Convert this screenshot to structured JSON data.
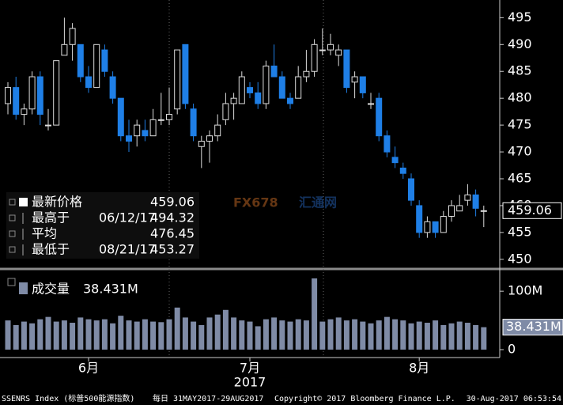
{
  "chart_data": [
    {
      "type": "candlestick",
      "categories": [
        null,
        null,
        null,
        null,
        null,
        null,
        null,
        null,
        null,
        null,
        null,
        null,
        null,
        null,
        null,
        null,
        null,
        null,
        null,
        null,
        null,
        null,
        null,
        null,
        null,
        null,
        null,
        null,
        null,
        null,
        null,
        null,
        null,
        null,
        null,
        null,
        null,
        null,
        null,
        null,
        null,
        null,
        null,
        null,
        null,
        null,
        null,
        null,
        null,
        null,
        null,
        null,
        null,
        null,
        null,
        null,
        null,
        null,
        null,
        null
      ],
      "open": [
        479,
        482,
        477,
        478,
        484,
        475,
        475,
        488,
        490,
        490,
        484,
        482,
        489,
        484,
        480,
        473,
        473,
        474,
        473,
        476,
        476,
        478,
        490,
        478,
        471,
        472,
        473,
        476,
        479,
        479,
        482,
        481,
        479,
        486,
        484,
        480,
        480,
        484,
        485,
        489,
        489,
        488,
        489,
        483,
        484,
        479,
        480,
        473,
        469,
        467,
        465,
        460,
        455,
        457,
        455,
        458,
        459,
        461,
        462,
        459
      ],
      "high": [
        483,
        484,
        479,
        485,
        485,
        478,
        487,
        495,
        494,
        490,
        486,
        490,
        490,
        485,
        480,
        476,
        476,
        476,
        478,
        481,
        482,
        489,
        490,
        479,
        473,
        474,
        477,
        481,
        481,
        485,
        483,
        483,
        487,
        490,
        485,
        481,
        486,
        489,
        491,
        493,
        492,
        490,
        489,
        485,
        484,
        481,
        481,
        474,
        471,
        468,
        466,
        461,
        458,
        457,
        459,
        461,
        462,
        464,
        463,
        460
      ],
      "low": [
        477,
        476,
        475,
        477,
        475,
        474,
        475,
        488,
        487,
        483,
        481,
        482,
        484,
        479,
        472,
        470,
        471,
        472,
        473,
        475,
        475,
        477,
        478,
        472,
        467,
        468,
        472,
        475,
        476,
        479,
        480,
        478,
        478,
        484,
        480,
        478,
        480,
        483,
        484,
        488,
        488,
        486,
        481,
        480,
        480,
        478,
        472,
        469,
        467,
        465,
        460,
        454,
        454,
        454,
        455,
        457,
        459,
        460,
        458,
        456
      ],
      "close": [
        482,
        477,
        478,
        484,
        477,
        475,
        487,
        490,
        493,
        484,
        482,
        490,
        485,
        480,
        473,
        472,
        475,
        473,
        476,
        476,
        477,
        489,
        479,
        473,
        472,
        473,
        475,
        479,
        480,
        484,
        481,
        479,
        486,
        484,
        480,
        479,
        484,
        485,
        490,
        489,
        490,
        489,
        482,
        484,
        481,
        479,
        473,
        470,
        468,
        466,
        461,
        455,
        457,
        455,
        458,
        460,
        460,
        462,
        459.5,
        459.06
      ],
      "up_color": "#ffffff",
      "down_color": "#1f7fe6",
      "ylim": [
        448.5,
        498
      ],
      "yticks": [
        450,
        455,
        460,
        465,
        470,
        475,
        480,
        485,
        490,
        495
      ],
      "xticks": [
        {
          "value": 10,
          "label": "6月"
        },
        {
          "value": 30,
          "label": "7月"
        },
        {
          "value": 51,
          "label": "8月"
        }
      ],
      "year_label": "2017",
      "last_value": 459.06,
      "legend": [
        {
          "label": "最新价格",
          "value": 459.06
        },
        {
          "label": "最高于",
          "date": "06/12/17",
          "value": 494.32
        },
        {
          "label": "平均",
          "value": 476.45
        },
        {
          "label": "最低于",
          "date": "08/21/17",
          "value": 453.27
        }
      ],
      "watermark": [
        "FX678",
        "汇通网"
      ]
    },
    {
      "type": "bar",
      "title": "成交量",
      "values": [
        50,
        42,
        48,
        45,
        52,
        56,
        48,
        50,
        46,
        55,
        52,
        50,
        52,
        45,
        58,
        50,
        48,
        52,
        48,
        47,
        52,
        72,
        55,
        48,
        42,
        55,
        60,
        68,
        55,
        50,
        48,
        40,
        52,
        55,
        50,
        48,
        52,
        50,
        122,
        48,
        52,
        55,
        50,
        52,
        48,
        45,
        50,
        56,
        52,
        50,
        45,
        48,
        46,
        50,
        42,
        45,
        48,
        46,
        42,
        38.431
      ],
      "color": "#7f8ba6",
      "last_value": 38.431,
      "last_value_label": "38.431M",
      "ylim": [
        0,
        130
      ],
      "yticks": [
        0,
        {
          "value": 100,
          "label": "100M"
        }
      ]
    }
  ],
  "footer": [
    "SSENRS Index (标普500能源指数)",
    "每日 31MAY2017-29AUG2017",
    "Copyright© 2017 Bloomberg Finance L.P.",
    "30-Aug-2017 06:53:54"
  ]
}
